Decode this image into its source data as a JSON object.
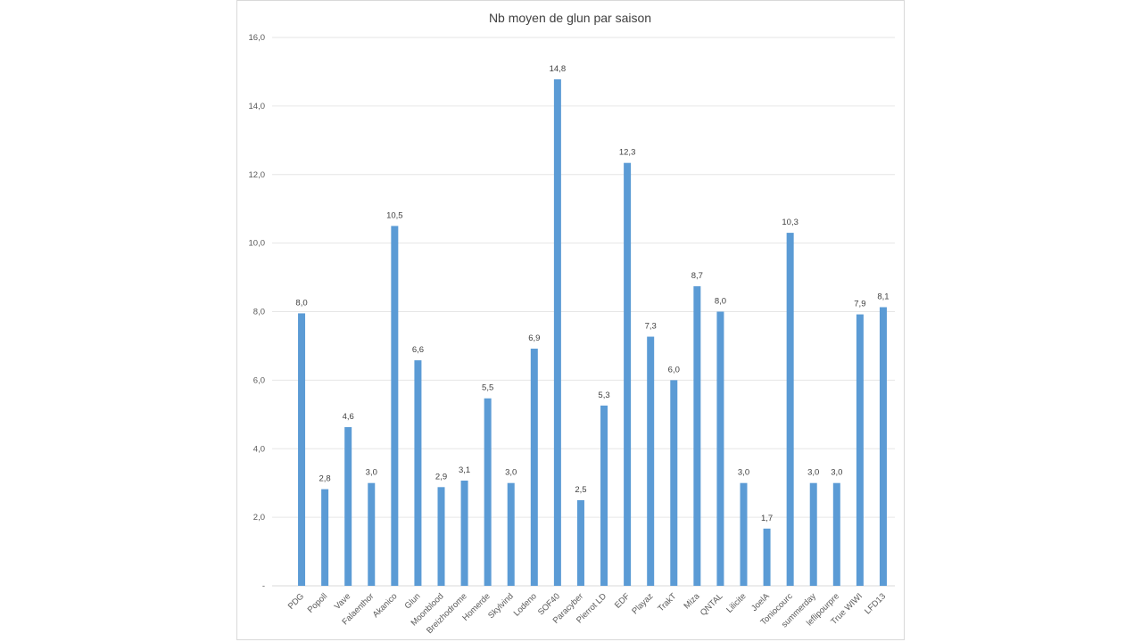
{
  "chart_data": {
    "type": "bar",
    "title": "Nb moyen de glun par saison",
    "xlabel": "",
    "ylabel": "",
    "ylim": [
      0,
      16
    ],
    "grid": true,
    "legend": "none",
    "bar_color": "#5b9bd5",
    "y_ticks": [
      "-",
      "2,0",
      "4,0",
      "6,0",
      "8,0",
      "10,0",
      "12,0",
      "14,0",
      "16,0"
    ],
    "categories": [
      "PDG",
      "Popoll",
      "Vave",
      "Falaenthor",
      "Akanico",
      "Glun",
      "Moonblood",
      "Breizhodrome",
      "Homerde",
      "Skylvind",
      "Lodeno",
      "SOF40",
      "Paracyber",
      "Pierrot LD",
      "EDF",
      "Playaz",
      "TrakT",
      "Miza",
      "QNTAL",
      "Lilicite",
      "JoelA",
      "Toniocourc",
      "summerday",
      "leflipourpre",
      "True WIWI",
      "LFD13"
    ],
    "values": [
      7.95,
      2.82,
      4.63,
      3.0,
      10.5,
      6.58,
      2.88,
      3.07,
      5.47,
      3.0,
      6.92,
      14.78,
      2.5,
      5.26,
      12.34,
      7.27,
      6.0,
      8.74,
      8.0,
      3.0,
      1.67,
      10.3,
      3.0,
      3.0,
      7.92,
      8.13
    ],
    "data_labels": [
      "8,0",
      "2,8",
      "4,6",
      "3,0",
      "10,5",
      "6,6",
      "2,9",
      "3,1",
      "5,5",
      "3,0",
      "6,9",
      "14,8",
      "2,5",
      "5,3",
      "12,3",
      "7,3",
      "6,0",
      "8,7",
      "8,0",
      "3,0",
      "1,7",
      "10,3",
      "3,0",
      "3,0",
      "7,9",
      "8,1"
    ]
  }
}
